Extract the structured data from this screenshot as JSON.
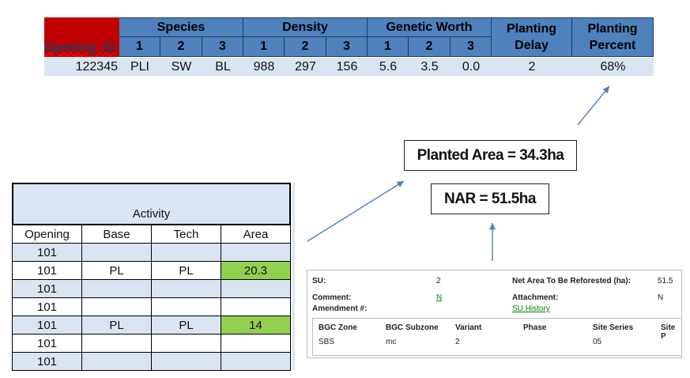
{
  "top_table": {
    "opening_id_label": "Opening_ID",
    "species_label": "Species",
    "density_label": "Density",
    "genetic_worth_label": "Genetic Worth",
    "planting_delay_label": "Planting Delay",
    "planting_percent_label": "Planting Percent",
    "col_nums": [
      "1",
      "2",
      "3"
    ],
    "row": {
      "opening_id": "122345",
      "species": [
        "PLI",
        "SW",
        "BL"
      ],
      "density": [
        "988",
        "297",
        "156"
      ],
      "genetic_worth": [
        "5.6",
        "3.5",
        "0.0"
      ],
      "planting_delay": "2",
      "planting_percent": "68%"
    }
  },
  "callouts": {
    "planted_area": "Planted Area = 34.3ha",
    "nar": "NAR = 51.5ha"
  },
  "activity_table": {
    "title": "Activity",
    "headers": [
      "Opening",
      "Base",
      "Tech",
      "Area"
    ],
    "rows": [
      {
        "opening": "101",
        "base": "",
        "tech": "",
        "area": ""
      },
      {
        "opening": "101",
        "base": "PL",
        "tech": "PL",
        "area": "20.3"
      },
      {
        "opening": "101",
        "base": "",
        "tech": "",
        "area": ""
      },
      {
        "opening": "101",
        "base": "",
        "tech": "",
        "area": ""
      },
      {
        "opening": "101",
        "base": "PL",
        "tech": "PL",
        "area": "14"
      },
      {
        "opening": "101",
        "base": "",
        "tech": "",
        "area": ""
      },
      {
        "opening": "101",
        "base": "",
        "tech": "",
        "area": ""
      }
    ]
  },
  "form": {
    "su_label": "SU:",
    "su_value": "2",
    "net_area_label": "Net Area To Be Reforested (ha):",
    "net_area_value": "51.5",
    "comment_label": "Comment:",
    "comment_link": "N",
    "attachment_label": "Attachment:",
    "attachment_value": "N",
    "amendment_label": "Amendment #:",
    "su_history_link": "SU History",
    "grid_headers": [
      "BGC Zone",
      "BGC Subzone",
      "Variant",
      "Phase",
      "Site Series",
      "Site P"
    ],
    "grid_values": [
      "SBS",
      "mc",
      "2",
      "",
      "05",
      ""
    ]
  }
}
